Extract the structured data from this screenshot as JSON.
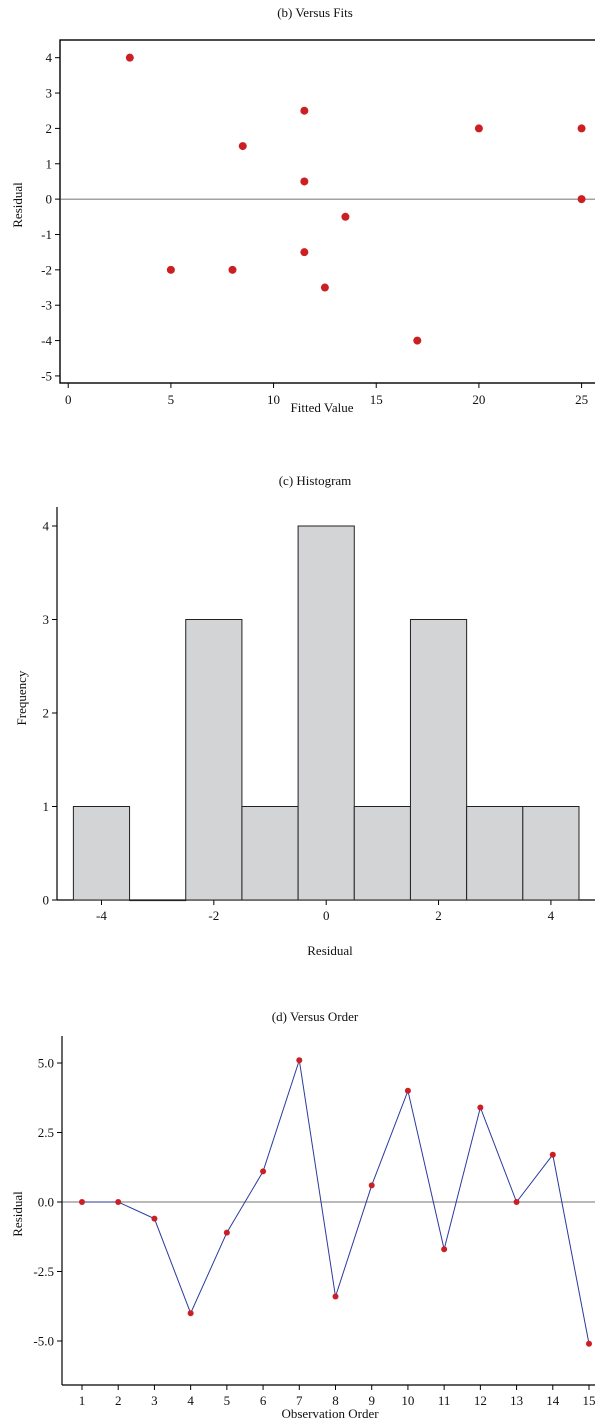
{
  "chart_data": [
    {
      "type": "scatter",
      "title": "(b) Versus Fits",
      "xlabel": "Fitted Value",
      "ylabel": "Residual",
      "xlim": [
        -0.4,
        25.8
      ],
      "ylim": [
        -5.2,
        4.5
      ],
      "xticks": [
        "0",
        "5",
        "10",
        "15",
        "20",
        "25"
      ],
      "yticks": [
        "4",
        "3",
        "2",
        "1",
        "0",
        "-1",
        "-2",
        "-3",
        "-4",
        "-5"
      ],
      "reference_line_y": 0,
      "grid": false,
      "points": [
        {
          "x": 3,
          "y": 4
        },
        {
          "x": 5,
          "y": -2
        },
        {
          "x": 8,
          "y": -2
        },
        {
          "x": 8.5,
          "y": 1.5
        },
        {
          "x": 11.5,
          "y": 2.5
        },
        {
          "x": 11.5,
          "y": 0.5
        },
        {
          "x": 11.5,
          "y": -1.5
        },
        {
          "x": 12.5,
          "y": -2.5
        },
        {
          "x": 13.5,
          "y": -0.5
        },
        {
          "x": 17,
          "y": -4
        },
        {
          "x": 20,
          "y": 2
        },
        {
          "x": 25,
          "y": 2
        },
        {
          "x": 25,
          "y": 0
        }
      ]
    },
    {
      "type": "bar",
      "title": "(c) Histogram",
      "xlabel": "Residual",
      "ylabel": "Frequency",
      "xlim": [
        -4.6,
        4.6
      ],
      "ylim": [
        0,
        4.2
      ],
      "xticks": [
        "-4",
        "-2",
        "0",
        "2",
        "4"
      ],
      "yticks": [
        "0",
        "1",
        "2",
        "3",
        "4"
      ],
      "grid": false,
      "bins": [
        {
          "center": -4,
          "value": 1
        },
        {
          "center": -3,
          "value": 0
        },
        {
          "center": -2,
          "value": 3
        },
        {
          "center": -1,
          "value": 1
        },
        {
          "center": 0,
          "value": 4
        },
        {
          "center": 1,
          "value": 1
        },
        {
          "center": 2,
          "value": 3
        },
        {
          "center": 3,
          "value": 1
        },
        {
          "center": 4,
          "value": 1
        }
      ]
    },
    {
      "type": "line",
      "title": "(d) Versus Order",
      "xlabel": "Observation Order",
      "ylabel": "Residual",
      "xlim": [
        0.6,
        15.1
      ],
      "ylim": [
        -5.8,
        5.6
      ],
      "xticks": [
        "1",
        "2",
        "3",
        "4",
        "5",
        "6",
        "7",
        "8",
        "9",
        "10",
        "11",
        "12",
        "13",
        "14",
        "15"
      ],
      "yticks": [
        "5.0",
        "2.5",
        "0.0",
        "-2.5",
        "-5.0"
      ],
      "reference_line_y": 0,
      "grid": false,
      "x": [
        1,
        2,
        3,
        4,
        5,
        6,
        7,
        8,
        9,
        10,
        11,
        12,
        13,
        14,
        15
      ],
      "values": [
        0,
        0,
        -0.6,
        -4.0,
        -1.1,
        1.1,
        5.1,
        -3.4,
        0.6,
        4.0,
        -1.7,
        3.4,
        0,
        1.7,
        -5.1
      ]
    }
  ]
}
